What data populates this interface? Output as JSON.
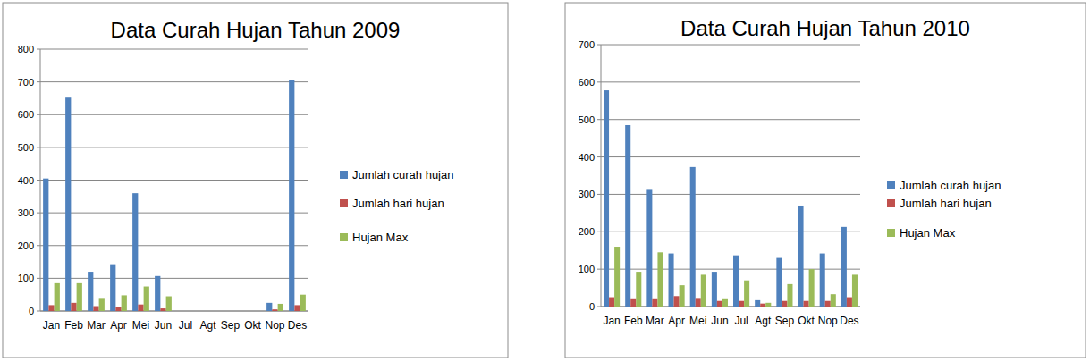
{
  "chart_data": [
    {
      "type": "bar",
      "title": "Data Curah Hujan Tahun 2009",
      "categories": [
        "Jan",
        "Feb",
        "Mar",
        "Apr",
        "Mei",
        "Jun",
        "Jul",
        "Agt",
        "Sep",
        "Okt",
        "Nop",
        "Des"
      ],
      "series": [
        {
          "name": "Jumlah curah hujan",
          "color": "#4f81bd",
          "values": [
            405,
            652,
            120,
            143,
            360,
            107,
            null,
            null,
            null,
            null,
            25,
            705
          ]
        },
        {
          "name": "Jumlah hari hujan",
          "color": "#c0504d",
          "values": [
            18,
            25,
            15,
            12,
            20,
            8,
            null,
            null,
            null,
            null,
            5,
            18
          ]
        },
        {
          "name": "Hujan Max",
          "color": "#9bbb59",
          "values": [
            85,
            85,
            40,
            48,
            75,
            45,
            null,
            null,
            null,
            null,
            22,
            50
          ]
        }
      ],
      "ylim": [
        0,
        800
      ],
      "yticks": [
        0,
        100,
        200,
        300,
        400,
        500,
        600,
        700,
        800
      ],
      "grid": true,
      "legend": "right"
    },
    {
      "type": "bar",
      "title": "Data Curah Hujan Tahun 2010",
      "categories": [
        "Jan",
        "Feb",
        "Mar",
        "Apr",
        "Mei",
        "Jun",
        "Jul",
        "Agt",
        "Sep",
        "Okt",
        "Nop",
        "Des"
      ],
      "series": [
        {
          "name": "Jumlah curah hujan",
          "color": "#4f81bd",
          "values": [
            578,
            485,
            312,
            142,
            373,
            93,
            137,
            17,
            130,
            270,
            142,
            213
          ]
        },
        {
          "name": "Jumlah hari hujan",
          "color": "#c0504d",
          "values": [
            25,
            22,
            22,
            28,
            23,
            15,
            15,
            8,
            15,
            15,
            15,
            25
          ]
        },
        {
          "name": "Hujan Max",
          "color": "#9bbb59",
          "values": [
            160,
            93,
            145,
            57,
            85,
            22,
            70,
            10,
            60,
            100,
            33,
            85
          ]
        }
      ],
      "ylim": [
        0,
        700
      ],
      "yticks": [
        0,
        100,
        200,
        300,
        400,
        500,
        600,
        700
      ],
      "grid": true,
      "legend": "right"
    }
  ]
}
